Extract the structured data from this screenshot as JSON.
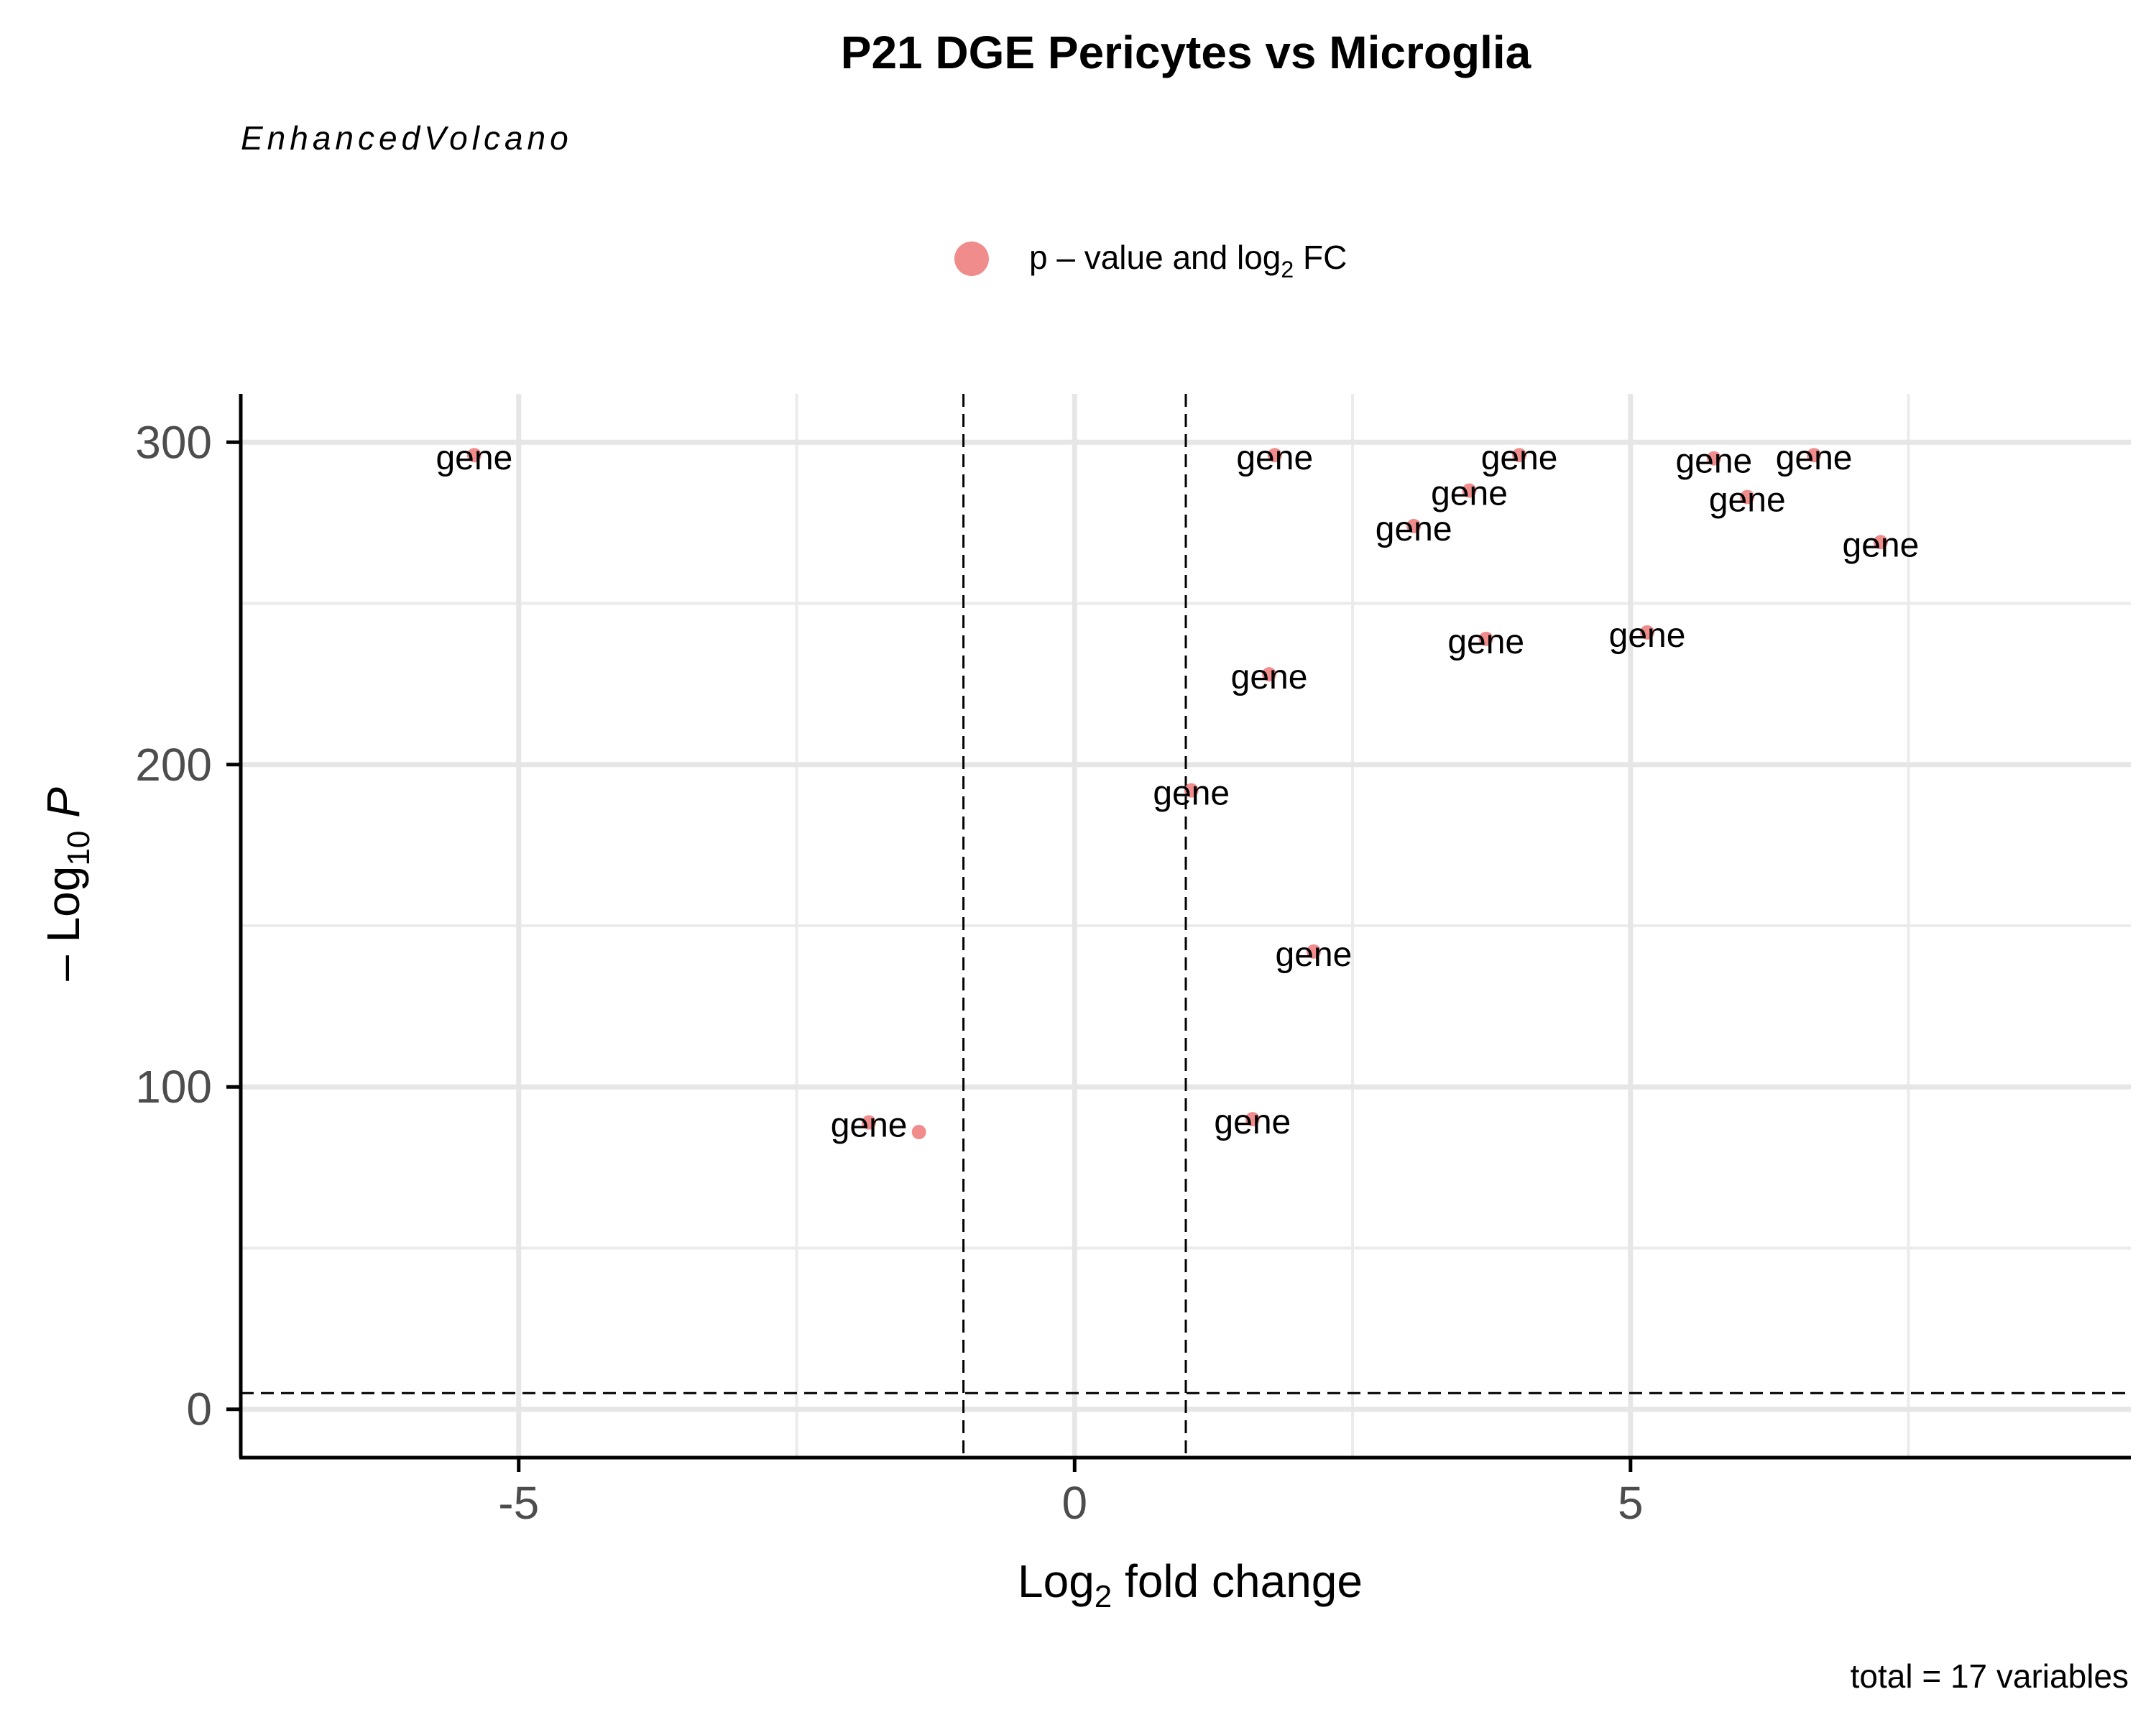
{
  "chart_data": {
    "type": "scatter",
    "title": "P21 DGE Pericytes vs Microglia",
    "subtitle": "EnhancedVolcano",
    "legend": {
      "position": "top",
      "entries": [
        {
          "label_main": "p – value and log",
          "label_sub": "2",
          "label_tail": " FC",
          "color": "#f07f80"
        }
      ]
    },
    "xlabel": {
      "main": "Log",
      "sub": "2",
      "tail": " fold change"
    },
    "ylabel": {
      "main": "– Log",
      "sub": "10",
      "tail": " P"
    },
    "caption": "total = 17 variables",
    "xlim": [
      -7.5,
      9.5
    ],
    "ylim": [
      -15,
      315
    ],
    "x_ticks": [
      -5,
      0,
      5
    ],
    "x_tick_labels": [
      "-5",
      "0",
      "5"
    ],
    "y_ticks": [
      0,
      100,
      200,
      300
    ],
    "y_tick_labels": [
      "0",
      "100",
      "200",
      "300"
    ],
    "x_minor_gridlines": [
      -7.5,
      -2.5,
      2.5,
      7.5
    ],
    "y_minor_gridlines": [
      50,
      150,
      250
    ],
    "fc_cutoff": 1,
    "p_cutoff_neglog10": 5,
    "grid": true,
    "point_color": "#f07f80",
    "points": [
      {
        "x": -5.4,
        "y": 296,
        "label": "gene"
      },
      {
        "x": -1.85,
        "y": 89,
        "label": "gene"
      },
      {
        "x": -1.4,
        "y": 86,
        "label": ""
      },
      {
        "x": 1.05,
        "y": 192,
        "label": "gene"
      },
      {
        "x": 1.6,
        "y": 90,
        "label": "gene"
      },
      {
        "x": 1.75,
        "y": 228,
        "label": "gene"
      },
      {
        "x": 1.8,
        "y": 296,
        "label": "gene"
      },
      {
        "x": 2.15,
        "y": 142,
        "label": "gene"
      },
      {
        "x": 3.05,
        "y": 274,
        "label": "gene"
      },
      {
        "x": 3.55,
        "y": 285,
        "label": "gene"
      },
      {
        "x": 3.7,
        "y": 239,
        "label": "gene"
      },
      {
        "x": 4.0,
        "y": 296,
        "label": "gene"
      },
      {
        "x": 5.15,
        "y": 241,
        "label": "gene"
      },
      {
        "x": 5.75,
        "y": 295,
        "label": "gene"
      },
      {
        "x": 6.05,
        "y": 283,
        "label": "gene"
      },
      {
        "x": 6.65,
        "y": 296,
        "label": "gene"
      },
      {
        "x": 7.25,
        "y": 269,
        "label": "gene"
      }
    ]
  }
}
